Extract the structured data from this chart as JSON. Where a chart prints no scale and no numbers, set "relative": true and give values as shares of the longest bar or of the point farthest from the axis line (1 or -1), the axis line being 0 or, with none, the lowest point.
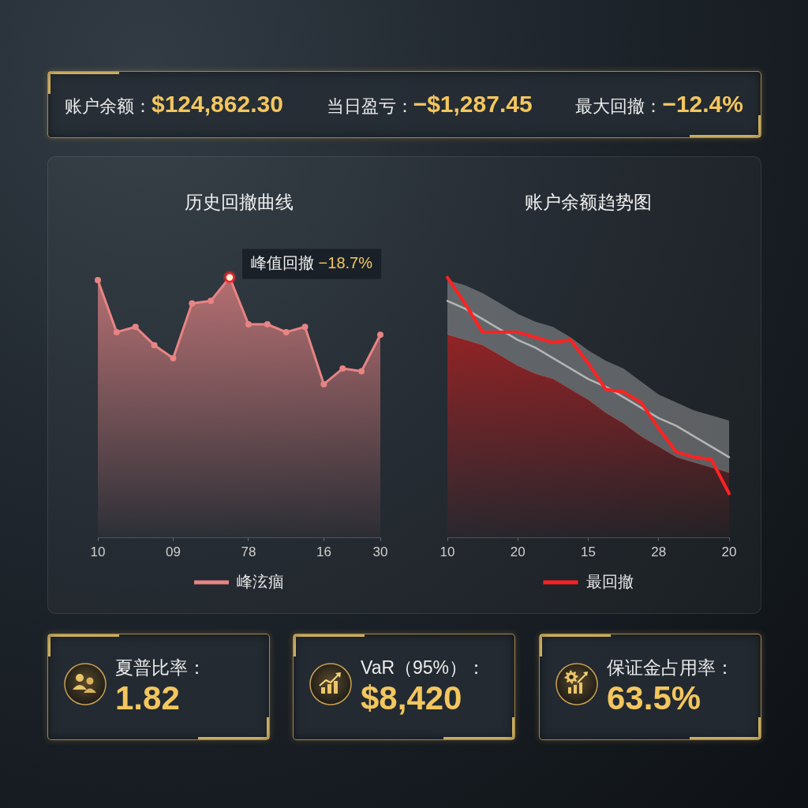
{
  "chart_data": [
    {
      "type": "other",
      "annotations": [
        "账户余额：",
        "$124,862.30",
        "当日盈亏：",
        "−$1,287.45",
        "最大回撤：",
        "−12.4%"
      ]
    },
    {
      "type": "area",
      "title": "历史回撤曲线",
      "relative": true,
      "categories": [
        "10",
        null,
        null,
        null,
        "09",
        null,
        null,
        null,
        "78",
        null,
        null,
        null,
        "16",
        null,
        null,
        "30"
      ],
      "series": [
        {
          "name": "峰泫痼",
          "color": "#e88484",
          "values": [
            0.99,
            0.79,
            0.81,
            0.74,
            0.69,
            0.9,
            0.91,
            1,
            0.82,
            0.82,
            0.79,
            0.81,
            0.59,
            0.65,
            0.64,
            0.78
          ]
        }
      ],
      "legend": "bottom",
      "marker": "circle",
      "annotations": [
        "峰值回撤 −18.7%"
      ]
    },
    {
      "type": "line",
      "title": "账户余额趋势图",
      "relative": true,
      "categories": [
        "10",
        null,
        null,
        null,
        "20",
        null,
        null,
        null,
        "15",
        null,
        null,
        null,
        "28",
        null,
        null,
        null,
        "20"
      ],
      "series": [
        {
          "type": "area",
          "color": "#c41e1e",
          "values": [
            0.78,
            0.76,
            0.74,
            0.7,
            0.66,
            0.63,
            0.61,
            0.57,
            0.53,
            0.48,
            0.44,
            0.39,
            0.35,
            0.31,
            0.29,
            0.27,
            0.25
          ]
        },
        {
          "color": "#b4b4b4",
          "values": [
            0.91,
            0.88,
            0.84,
            0.8,
            0.76,
            0.73,
            0.69,
            0.65,
            0.61,
            0.58,
            0.54,
            0.5,
            0.46,
            0.43,
            0.39,
            0.35,
            0.31
          ],
          "lower": [
            0.78,
            0.76,
            0.74,
            0.7,
            0.66,
            0.63,
            0.61,
            0.57,
            0.53,
            0.48,
            0.44,
            0.39,
            0.35,
            0.31,
            0.29,
            0.27,
            0.25
          ],
          "upper": [
            0.99,
            0.97,
            0.94,
            0.9,
            0.86,
            0.83,
            0.81,
            0.77,
            0.72,
            0.68,
            0.65,
            0.6,
            0.55,
            0.52,
            0.49,
            0.47,
            0.45
          ]
        },
        {
          "name": "最回撤",
          "color": "#ff2222",
          "values": [
            1,
            0.9,
            0.79,
            0.79,
            0.79,
            0.77,
            0.75,
            0.76,
            0.67,
            0.57,
            0.56,
            0.52,
            0.42,
            0.33,
            0.31,
            0.3,
            0.17
          ]
        }
      ],
      "legend": "bottom"
    },
    {
      "type": "other",
      "annotations": [
        "夏普比率：",
        "1.82",
        "VaR（95%）：",
        "$8,420",
        "保证金占用率：",
        "63.5%"
      ]
    }
  ]
}
